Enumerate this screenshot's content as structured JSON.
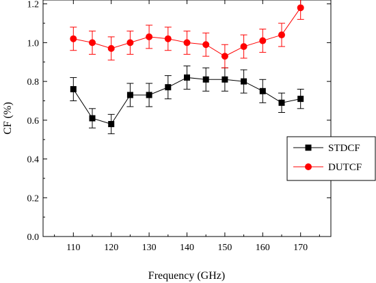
{
  "chart_data": {
    "type": "line",
    "title": "",
    "xlabel": "Frequency (GHz)",
    "ylabel": "CF (%)",
    "xlim": [
      102,
      178
    ],
    "ylim": [
      0.0,
      1.22
    ],
    "xticks": [
      110,
      120,
      130,
      140,
      150,
      160,
      170
    ],
    "xtick_labels": [
      "110",
      "120",
      "130",
      "140",
      "150",
      "160",
      "170"
    ],
    "yticks": [
      0.0,
      0.2,
      0.4,
      0.6,
      0.8,
      1.0,
      1.2
    ],
    "ytick_labels": [
      "0.0",
      "0.2",
      "0.4",
      "0.6",
      "0.8",
      "1.0",
      "1.2"
    ],
    "x": [
      110,
      115,
      120,
      125,
      130,
      135,
      140,
      145,
      150,
      155,
      160,
      165,
      170
    ],
    "grid": false,
    "legend_position": "right",
    "series": [
      {
        "name": "STDCF",
        "color": "#000000",
        "marker": "square",
        "values": [
          0.76,
          0.61,
          0.58,
          0.73,
          0.73,
          0.77,
          0.82,
          0.81,
          0.81,
          0.8,
          0.75,
          0.69,
          0.71
        ],
        "errors": [
          0.06,
          0.05,
          0.05,
          0.06,
          0.06,
          0.06,
          0.06,
          0.06,
          0.06,
          0.06,
          0.06,
          0.05,
          0.05
        ]
      },
      {
        "name": "DUTCF",
        "color": "#ff0000",
        "marker": "circle",
        "values": [
          1.02,
          1.0,
          0.97,
          1.0,
          1.03,
          1.02,
          1.0,
          0.99,
          0.93,
          0.98,
          1.01,
          1.04,
          1.18
        ],
        "errors": [
          0.06,
          0.06,
          0.06,
          0.06,
          0.06,
          0.06,
          0.06,
          0.06,
          0.06,
          0.06,
          0.06,
          0.06,
          0.06
        ]
      }
    ]
  }
}
